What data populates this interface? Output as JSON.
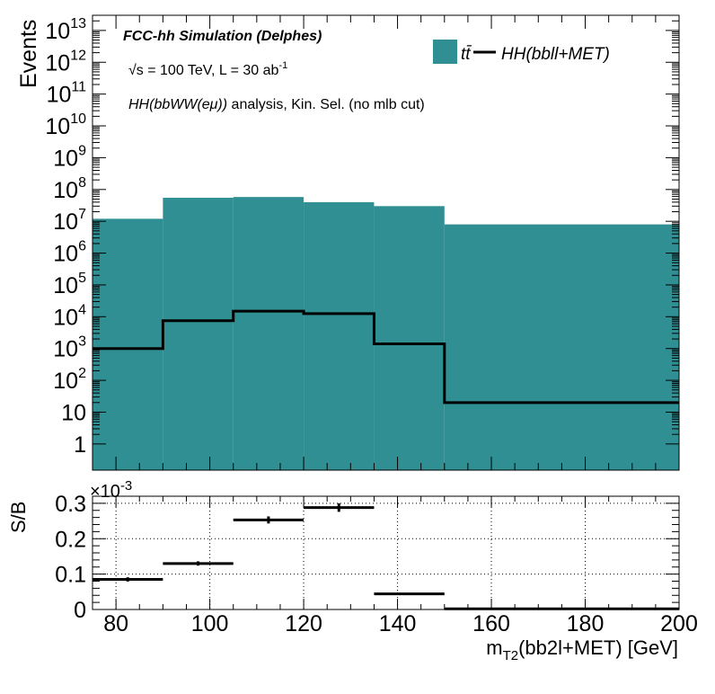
{
  "chart_data": [
    {
      "type": "histogram",
      "ylabel": "Events",
      "yscale": "log",
      "ylim": [
        0.15,
        30000000000000
      ],
      "xlim": [
        75,
        200
      ],
      "annotations": {
        "experiment": "FCC-hh Simulation (Delphes)",
        "energy_prefix": "√s = 100 TeV, L = 30 ab",
        "energy_exp": "-1",
        "analysis_italic": "HH(bbWW(eμ))",
        "analysis_rest": " analysis, Kin. Sel. (no mlb cut)"
      },
      "legend": {
        "placement": "top-right",
        "entries": [
          {
            "label": "tt̄",
            "style": "fill",
            "color": "#2f8f93"
          },
          {
            "label": "HH(bbll+MET)",
            "style": "line",
            "color": "#000000"
          }
        ]
      },
      "bin_edges": [
        75,
        90,
        105,
        120,
        135,
        150,
        200
      ],
      "series": [
        {
          "name": "tt̄",
          "style": "fill",
          "values": [
            12000000,
            55000000,
            58000000,
            40000000,
            30000000,
            8000000
          ]
        },
        {
          "name": "HH(bbll+MET)",
          "style": "line",
          "values": [
            1000,
            7500,
            15000,
            12500,
            1400,
            20
          ]
        }
      ],
      "y_ticks": [
        {
          "value": 1,
          "base": "1",
          "exp": ""
        },
        {
          "value": 10,
          "base": "10",
          "exp": ""
        },
        {
          "value": 100,
          "base": "10",
          "exp": "2"
        },
        {
          "value": 1000,
          "base": "10",
          "exp": "3"
        },
        {
          "value": 10000,
          "base": "10",
          "exp": "4"
        },
        {
          "value": 100000,
          "base": "10",
          "exp": "5"
        },
        {
          "value": 1000000,
          "base": "10",
          "exp": "6"
        },
        {
          "value": 10000000,
          "base": "10",
          "exp": "7"
        },
        {
          "value": 100000000,
          "base": "10",
          "exp": "8"
        },
        {
          "value": 1000000000,
          "base": "10",
          "exp": "9"
        },
        {
          "value": 10000000000,
          "base": "10",
          "exp": "10"
        },
        {
          "value": 100000000000,
          "base": "10",
          "exp": "11"
        },
        {
          "value": 1000000000000,
          "base": "10",
          "exp": "12"
        },
        {
          "value": 10000000000000,
          "base": "10",
          "exp": "13"
        }
      ]
    },
    {
      "type": "errorbar",
      "ylabel": "S/B",
      "ylabel_multiplier_base": "×10",
      "ylabel_multiplier_exp": "-3",
      "xlabel_main": "m",
      "xlabel_sub": "T2",
      "xlabel_rest": "(bb2l+MET) [GeV]",
      "xlim": [
        75,
        200
      ],
      "ylim": [
        0,
        0.32
      ],
      "grid": true,
      "x_ticks": [
        80,
        100,
        120,
        140,
        160,
        180,
        200
      ],
      "y_ticks": [
        0,
        0.1,
        0.2,
        0.3
      ],
      "points": [
        {
          "x": 82.5,
          "xlow": 75,
          "xhigh": 90,
          "y": 0.085,
          "err": 0.006
        },
        {
          "x": 97.5,
          "xlow": 90,
          "xhigh": 105,
          "y": 0.13,
          "err": 0.006
        },
        {
          "x": 112.5,
          "xlow": 105,
          "xhigh": 120,
          "y": 0.253,
          "err": 0.01
        },
        {
          "x": 127.5,
          "xlow": 120,
          "xhigh": 135,
          "y": 0.288,
          "err": 0.012
        },
        {
          "x": 142.5,
          "xlow": 135,
          "xhigh": 150,
          "y": 0.044,
          "err": 0.001
        },
        {
          "x": 175,
          "xlow": 150,
          "xhigh": 200,
          "y": 0.002,
          "err": 0.0005
        }
      ]
    }
  ]
}
